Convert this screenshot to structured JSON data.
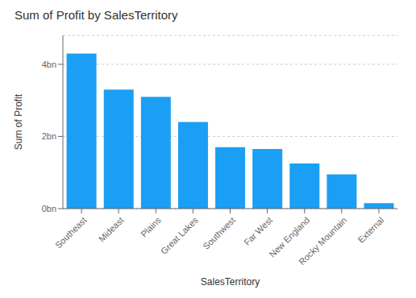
{
  "chart_data": {
    "type": "bar",
    "title": "Sum of Profit by SalesTerritory",
    "xlabel": "SalesTerritory",
    "ylabel": "Sum of Profit",
    "categories": [
      "Southeast",
      "Mideast",
      "Plains",
      "Great Lakes",
      "Southwest",
      "Far West",
      "New England",
      "Rocky Mountain",
      "External"
    ],
    "values": [
      4.3,
      3.3,
      3.1,
      2.4,
      1.7,
      1.65,
      1.25,
      0.95,
      0.15
    ],
    "color": "#1a9ff5",
    "ylim": [
      0,
      4.8
    ],
    "yticks": [
      {
        "value": 0,
        "label": "0bn"
      },
      {
        "value": 2,
        "label": "2bn"
      },
      {
        "value": 4,
        "label": "4bn"
      }
    ],
    "grid": true
  }
}
